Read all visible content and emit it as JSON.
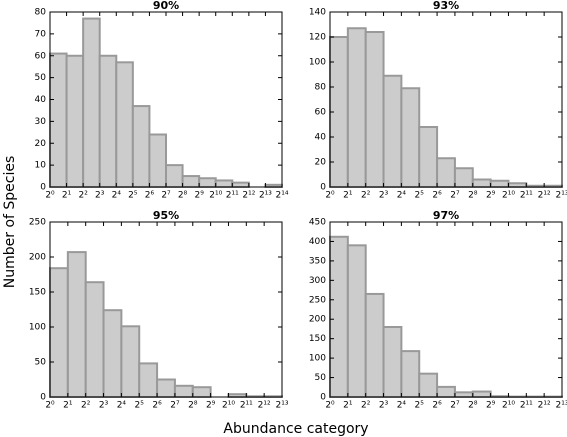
{
  "xlabel": "Abundance category",
  "ylabel": "Number of Species",
  "chart_data": [
    {
      "type": "histogram",
      "title": "90%",
      "color": "#cccccc",
      "edgecolor": "#999999",
      "xscale": "log",
      "xbase": 2,
      "bins": [
        1,
        2,
        4,
        8,
        16,
        32,
        64,
        128,
        256,
        512,
        1024,
        2048,
        4096,
        8192,
        16384
      ],
      "values": [
        61,
        60,
        77,
        60,
        57,
        37,
        24,
        10,
        5,
        4,
        3,
        2,
        0,
        1
      ],
      "xlim": [
        1,
        16384
      ],
      "xticks": [
        {
          "value": 1,
          "label": "2⁰"
        },
        {
          "value": 2,
          "label": "2¹"
        },
        {
          "value": 4,
          "label": "2²"
        },
        {
          "value": 8,
          "label": "2³"
        },
        {
          "value": 16,
          "label": "2⁴"
        },
        {
          "value": 32,
          "label": "2⁵"
        },
        {
          "value": 64,
          "label": "2⁶"
        },
        {
          "value": 128,
          "label": "2⁷"
        },
        {
          "value": 256,
          "label": "2⁸"
        },
        {
          "value": 512,
          "label": "2⁹"
        },
        {
          "value": 1024,
          "label": "2¹⁰"
        },
        {
          "value": 2048,
          "label": "2¹¹"
        },
        {
          "value": 4096,
          "label": "2¹²"
        },
        {
          "value": 8192,
          "label": "2¹³"
        },
        {
          "value": 16384,
          "label": "2¹⁴"
        }
      ],
      "ylim": [
        0,
        80
      ],
      "yticks": [
        0,
        10,
        20,
        30,
        40,
        50,
        60,
        70,
        80
      ]
    },
    {
      "type": "histogram",
      "title": "93%",
      "color": "#cccccc",
      "edgecolor": "#999999",
      "xscale": "log",
      "xbase": 2,
      "bins": [
        1,
        2,
        4,
        8,
        16,
        32,
        64,
        128,
        256,
        512,
        1024,
        2048,
        4096,
        8192
      ],
      "values": [
        120,
        127,
        124,
        89,
        79,
        48,
        23,
        15,
        6,
        5,
        3,
        1,
        1
      ],
      "xlim": [
        1,
        8192
      ],
      "xticks": [
        {
          "value": 1,
          "label": "2⁰"
        },
        {
          "value": 2,
          "label": "2¹"
        },
        {
          "value": 4,
          "label": "2²"
        },
        {
          "value": 8,
          "label": "2³"
        },
        {
          "value": 16,
          "label": "2⁴"
        },
        {
          "value": 32,
          "label": "2⁵"
        },
        {
          "value": 64,
          "label": "2⁶"
        },
        {
          "value": 128,
          "label": "2⁷"
        },
        {
          "value": 256,
          "label": "2⁸"
        },
        {
          "value": 512,
          "label": "2⁹"
        },
        {
          "value": 1024,
          "label": "2¹⁰"
        },
        {
          "value": 2048,
          "label": "2¹¹"
        },
        {
          "value": 4096,
          "label": "2¹²"
        },
        {
          "value": 8192,
          "label": "2¹³"
        }
      ],
      "ylim": [
        0,
        140
      ],
      "yticks": [
        0,
        20,
        40,
        60,
        80,
        100,
        120,
        140
      ]
    },
    {
      "type": "histogram",
      "title": "95%",
      "color": "#cccccc",
      "edgecolor": "#999999",
      "xscale": "log",
      "xbase": 2,
      "bins": [
        1,
        2,
        4,
        8,
        16,
        32,
        64,
        128,
        256,
        512,
        1024,
        2048,
        4096,
        8192
      ],
      "values": [
        184,
        207,
        164,
        124,
        101,
        48,
        25,
        16,
        14,
        0,
        4,
        1,
        1
      ],
      "xlim": [
        1,
        8192
      ],
      "xticks": [
        {
          "value": 1,
          "label": "2⁰"
        },
        {
          "value": 2,
          "label": "2¹"
        },
        {
          "value": 4,
          "label": "2²"
        },
        {
          "value": 8,
          "label": "2³"
        },
        {
          "value": 16,
          "label": "2⁴"
        },
        {
          "value": 32,
          "label": "2⁵"
        },
        {
          "value": 64,
          "label": "2⁶"
        },
        {
          "value": 128,
          "label": "2⁷"
        },
        {
          "value": 256,
          "label": "2⁸"
        },
        {
          "value": 512,
          "label": "2⁹"
        },
        {
          "value": 1024,
          "label": "2¹⁰"
        },
        {
          "value": 2048,
          "label": "2¹¹"
        },
        {
          "value": 4096,
          "label": "2¹²"
        },
        {
          "value": 8192,
          "label": "2¹³"
        }
      ],
      "ylim": [
        0,
        250
      ],
      "yticks": [
        0,
        50,
        100,
        150,
        200,
        250
      ]
    },
    {
      "type": "histogram",
      "title": "97%",
      "color": "#cccccc",
      "edgecolor": "#999999",
      "xscale": "log",
      "xbase": 2,
      "bins": [
        1,
        2,
        4,
        8,
        16,
        32,
        64,
        128,
        256,
        512,
        1024,
        2048,
        4096,
        8192
      ],
      "values": [
        412,
        390,
        265,
        180,
        118,
        60,
        26,
        12,
        14,
        2,
        1,
        1,
        1
      ],
      "xlim": [
        1,
        8192
      ],
      "xticks": [
        {
          "value": 1,
          "label": "2⁰"
        },
        {
          "value": 2,
          "label": "2¹"
        },
        {
          "value": 4,
          "label": "2²"
        },
        {
          "value": 8,
          "label": "2³"
        },
        {
          "value": 16,
          "label": "2⁴"
        },
        {
          "value": 32,
          "label": "2⁵"
        },
        {
          "value": 64,
          "label": "2⁶"
        },
        {
          "value": 128,
          "label": "2⁷"
        },
        {
          "value": 256,
          "label": "2⁸"
        },
        {
          "value": 512,
          "label": "2⁹"
        },
        {
          "value": 1024,
          "label": "2¹⁰"
        },
        {
          "value": 2048,
          "label": "2¹¹"
        },
        {
          "value": 4096,
          "label": "2¹²"
        },
        {
          "value": 8192,
          "label": "2¹³"
        }
      ],
      "ylim": [
        0,
        450
      ],
      "yticks": [
        0,
        50,
        100,
        150,
        200,
        250,
        300,
        350,
        400,
        450
      ]
    }
  ]
}
